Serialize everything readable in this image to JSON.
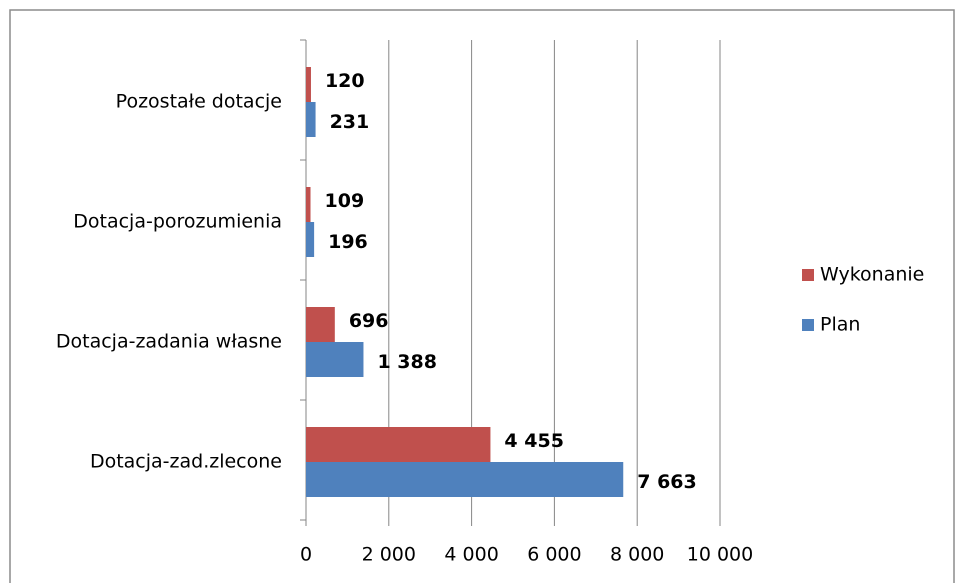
{
  "chart_data": {
    "type": "hbar",
    "categories": [
      "Dotacja-zad.zlecone",
      "Dotacja-zadania własne",
      "Dotacja-porozumienia",
      "Pozostałe dotacje"
    ],
    "series": [
      {
        "name": "Wykonanie",
        "color": "#c0504d",
        "values": [
          4455,
          696,
          109,
          120
        ],
        "value_labels": [
          "4 455",
          "696",
          "109",
          "120"
        ]
      },
      {
        "name": "Plan",
        "color": "#4f81bd",
        "values": [
          7663,
          1388,
          196,
          231
        ],
        "value_labels": [
          "7 663",
          "1 388",
          "196",
          "231"
        ]
      }
    ],
    "xlim": [
      0,
      10000
    ],
    "xticks": [
      0,
      {
        "value": 2000,
        "label": "2 000"
      },
      {
        "value": 4000,
        "label": "4 000"
      },
      {
        "value": 6000,
        "label": "6 000"
      },
      {
        "value": 8000,
        "label": "8 000"
      },
      {
        "value": 10000,
        "label": "10 000"
      }
    ],
    "grid": true,
    "legend": "right"
  }
}
